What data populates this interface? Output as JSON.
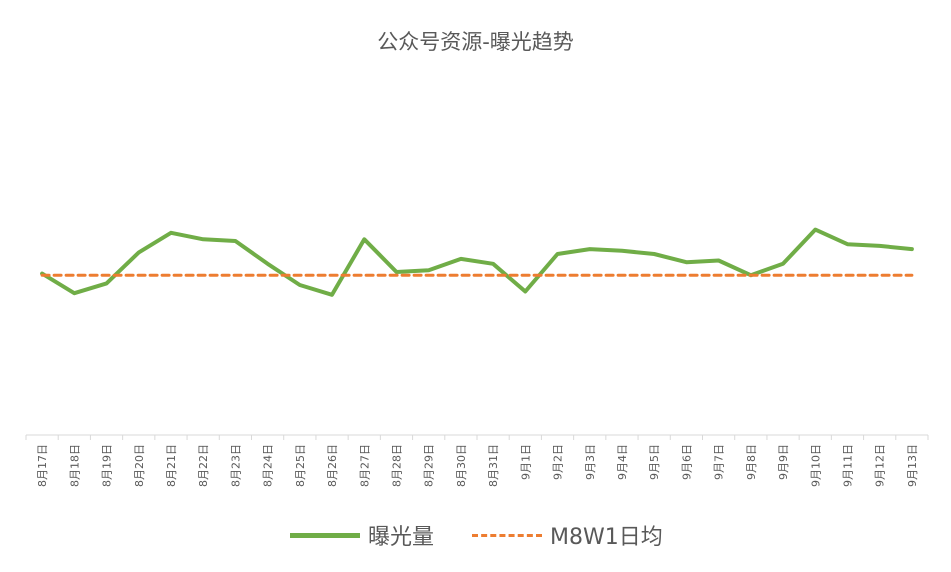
{
  "chart_data": {
    "type": "line",
    "title": "公众号资源-曝光趋势",
    "categories": [
      "8月17日",
      "8月18日",
      "8月19日",
      "8月20日",
      "8月21日",
      "8月22日",
      "8月23日",
      "8月24日",
      "8月25日",
      "8月26日",
      "8月27日",
      "8月28日",
      "8月29日",
      "8月30日",
      "8月31日",
      "9月1日",
      "9月2日",
      "9月3日",
      "9月4日",
      "9月5日",
      "9月6日",
      "9月7日",
      "9月8日",
      "9月9日",
      "9月10日",
      "9月11日",
      "9月12日",
      "9月13日"
    ],
    "series": [
      {
        "name": "曝光量",
        "color": "#70AD47",
        "style": "solid",
        "values": [
          0.99,
          0.87,
          0.93,
          1.12,
          1.24,
          1.2,
          1.19,
          1.05,
          0.92,
          0.86,
          1.2,
          1.0,
          1.01,
          1.08,
          1.05,
          0.88,
          1.11,
          1.14,
          1.13,
          1.11,
          1.06,
          1.07,
          0.98,
          1.05,
          1.26,
          1.17,
          1.16,
          1.14
        ]
      },
      {
        "name": "M8W1日均",
        "color": "#ED7D31",
        "style": "dashed",
        "values": [
          0.98,
          0.98,
          0.98,
          0.98,
          0.98,
          0.98,
          0.98,
          0.98,
          0.98,
          0.98,
          0.98,
          0.98,
          0.98,
          0.98,
          0.98,
          0.98,
          0.98,
          0.98,
          0.98,
          0.98,
          0.98,
          0.98,
          0.98,
          0.98,
          0.98,
          0.98,
          0.98,
          0.98
        ]
      }
    ],
    "ylim": [
      0,
      2.3
    ],
    "grid": false,
    "legend_position": "bottom"
  }
}
